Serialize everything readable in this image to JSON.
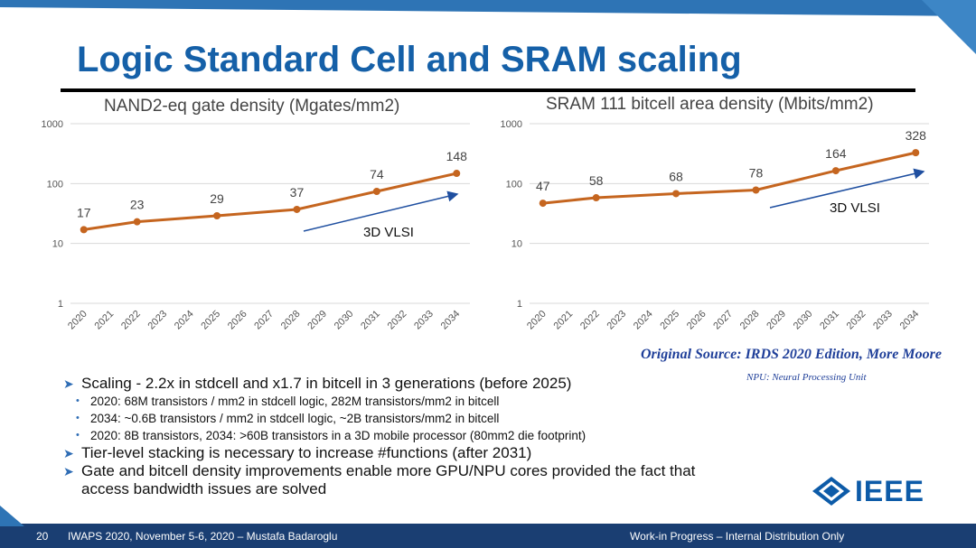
{
  "slide": {
    "title": "Logic Standard Cell and SRAM scaling",
    "source": "Original Source: IRDS 2020 Edition, More Moore",
    "npu_note": "NPU: Neural Processing Unit",
    "footer": {
      "page": "20",
      "left": "IWAPS 2020, November 5-6, 2020 – Mustafa Badaroglu",
      "right": "Work-in Progress – Internal Distribution Only"
    },
    "logo_text": "IEEE",
    "bullets": [
      {
        "text": "Scaling - 2.2x in stdcell and x1.7 in bitcell in 3 generations (before 2025)",
        "sub": [
          "2020: 68M transistors / mm2 in stdcell logic, 282M transistors/mm2 in bitcell",
          "2034: ~0.6B transistors / mm2 in stdcell logic, ~2B transistors/mm2 in bitcell",
          "2020: 8B transistors, 2034: >60B transistors in a 3D mobile processor (80mm2 die footprint)"
        ]
      },
      {
        "text": "Tier-level stacking is necessary to increase #functions (after 2031)",
        "sub": []
      },
      {
        "text": "Gate and bitcell density improvements enable more GPU/NPU cores provided the fact that access bandwidth issues are solved",
        "sub": []
      }
    ],
    "colors": {
      "title": "#1560a8",
      "series": "#c5651f",
      "trend_arrow": "#1f4fa0",
      "footer_bg": "#1a3e72"
    }
  },
  "chart_data": [
    {
      "type": "line",
      "title": "NAND2-eq gate density (Mgates/mm2)",
      "scale": "log",
      "ylim": [
        1,
        1000
      ],
      "yticks": [
        "1",
        "10",
        "100",
        "1000"
      ],
      "categories": [
        "2020",
        "2021",
        "2022",
        "2023",
        "2024",
        "2025",
        "2026",
        "2027",
        "2028",
        "2029",
        "2030",
        "2031",
        "2032",
        "2033",
        "2034"
      ],
      "series": [
        {
          "x": [
            "2020",
            "2022",
            "2025",
            "2028",
            "2031",
            "2034"
          ],
          "values": [
            17,
            23,
            29,
            37,
            74,
            148
          ]
        }
      ],
      "annotation": "3D VLSI",
      "grid": true
    },
    {
      "type": "line",
      "title": "SRAM 111 bitcell area density (Mbits/mm2)",
      "scale": "log",
      "ylim": [
        1,
        1000
      ],
      "yticks": [
        "1",
        "10",
        "100",
        "1000"
      ],
      "categories": [
        "2020",
        "2021",
        "2022",
        "2023",
        "2024",
        "2025",
        "2026",
        "2027",
        "2028",
        "2029",
        "2030",
        "2031",
        "2032",
        "2033",
        "2034"
      ],
      "series": [
        {
          "x": [
            "2020",
            "2022",
            "2025",
            "2028",
            "2031",
            "2034"
          ],
          "values": [
            47,
            58,
            68,
            78,
            164,
            328
          ]
        }
      ],
      "annotation": "3D VLSI",
      "grid": true
    }
  ]
}
